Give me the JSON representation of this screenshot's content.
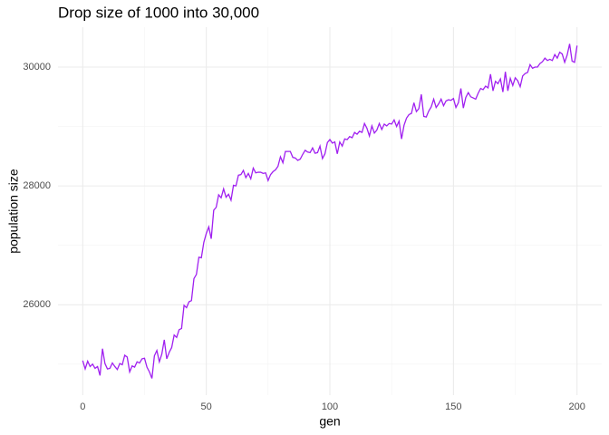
{
  "chart_data": {
    "type": "line",
    "title": "Drop size of 1000 into 30,000",
    "x_label": "gen",
    "y_label": "population size",
    "color": "#a020f0",
    "xlim": [
      -10,
      210
    ],
    "xticks": [
      0,
      50,
      100,
      150,
      200
    ],
    "xminor": [
      25,
      75,
      125,
      175
    ],
    "ylim": [
      24479,
      30671
    ],
    "yticks": [
      26000,
      28000,
      30000
    ],
    "yminor": [
      25000,
      27000,
      29000
    ],
    "grid": true,
    "x": [
      0,
      1,
      2,
      3,
      4,
      5,
      6,
      7,
      8,
      9,
      10,
      11,
      12,
      13,
      14,
      15,
      16,
      17,
      18,
      19,
      20,
      21,
      22,
      23,
      24,
      25,
      26,
      27,
      28,
      29,
      30,
      31,
      32,
      33,
      34,
      35,
      36,
      37,
      38,
      39,
      40,
      41,
      42,
      43,
      44,
      45,
      46,
      47,
      48,
      49,
      50,
      51,
      52,
      53,
      54,
      55,
      56,
      57,
      58,
      59,
      60,
      61,
      62,
      63,
      64,
      65,
      66,
      67,
      68,
      69,
      70,
      71,
      72,
      73,
      74,
      75,
      76,
      77,
      78,
      79,
      80,
      81,
      82,
      83,
      84,
      85,
      86,
      87,
      88,
      89,
      90,
      91,
      92,
      93,
      94,
      95,
      96,
      97,
      98,
      99,
      100,
      101,
      102,
      103,
      104,
      105,
      106,
      107,
      108,
      109,
      110,
      111,
      112,
      113,
      114,
      115,
      116,
      117,
      118,
      119,
      120,
      121,
      122,
      123,
      124,
      125,
      126,
      127,
      128,
      129,
      130,
      131,
      132,
      133,
      134,
      135,
      136,
      137,
      138,
      139,
      140,
      141,
      142,
      143,
      144,
      145,
      146,
      147,
      148,
      149,
      150,
      151,
      152,
      153,
      154,
      155,
      156,
      157,
      158,
      159,
      160,
      161,
      162,
      163,
      164,
      165,
      166,
      167,
      168,
      169,
      170,
      171,
      172,
      173,
      174,
      175,
      176,
      177,
      178,
      179,
      180,
      181,
      182,
      183,
      184,
      185,
      186,
      187,
      188,
      189,
      190,
      191,
      192,
      193,
      194,
      195,
      196,
      197,
      198,
      199,
      200
    ],
    "values": [
      25060,
      24920,
      25050,
      24960,
      25000,
      24930,
      24960,
      24810,
      25260,
      25010,
      24920,
      24930,
      25020,
      24960,
      24910,
      25010,
      24990,
      25150,
      25120,
      24870,
      24970,
      24950,
      25040,
      25020,
      25090,
      25100,
      24950,
      24870,
      24760,
      25140,
      25230,
      25040,
      25170,
      25410,
      25090,
      25200,
      25280,
      25490,
      25450,
      25580,
      25600,
      25990,
      25950,
      26050,
      26070,
      26440,
      26510,
      26800,
      26790,
      27050,
      27200,
      27310,
      27110,
      27590,
      27640,
      27850,
      27800,
      27950,
      27810,
      27860,
      27760,
      28010,
      28000,
      28180,
      28190,
      28260,
      28140,
      28210,
      28120,
      28300,
      28220,
      28230,
      28230,
      28210,
      28220,
      28090,
      28190,
      28240,
      28270,
      28330,
      28490,
      28390,
      28580,
      28580,
      28580,
      28480,
      28470,
      28430,
      28450,
      28530,
      28600,
      28570,
      28560,
      28640,
      28550,
      28560,
      28670,
      28460,
      28540,
      28730,
      28780,
      28720,
      28740,
      28540,
      28740,
      28670,
      28790,
      28780,
      28830,
      28810,
      28900,
      28870,
      28920,
      28900,
      29050,
      28970,
      28840,
      29010,
      28890,
      28940,
      29050,
      28950,
      29040,
      29010,
      29050,
      29040,
      29110,
      29000,
      29090,
      28790,
      29020,
      29140,
      29200,
      29220,
      29400,
      29250,
      29300,
      29540,
      29170,
      29160,
      29260,
      29330,
      29460,
      29320,
      29380,
      29460,
      29350,
      29430,
      29450,
      29440,
      29470,
      29320,
      29400,
      29640,
      29310,
      29490,
      29570,
      29500,
      29480,
      29460,
      29560,
      29640,
      29620,
      29680,
      29650,
      29880,
      29600,
      29760,
      29720,
      29800,
      29580,
      29920,
      29600,
      29810,
      29690,
      29820,
      29770,
      29670,
      29850,
      29890,
      29910,
      30040,
      29980,
      30000,
      30000,
      30060,
      30090,
      30150,
      30110,
      30130,
      30110,
      30210,
      30150,
      30250,
      30220,
      30080,
      30200,
      30390,
      30100,
      30080,
      30360
    ]
  }
}
